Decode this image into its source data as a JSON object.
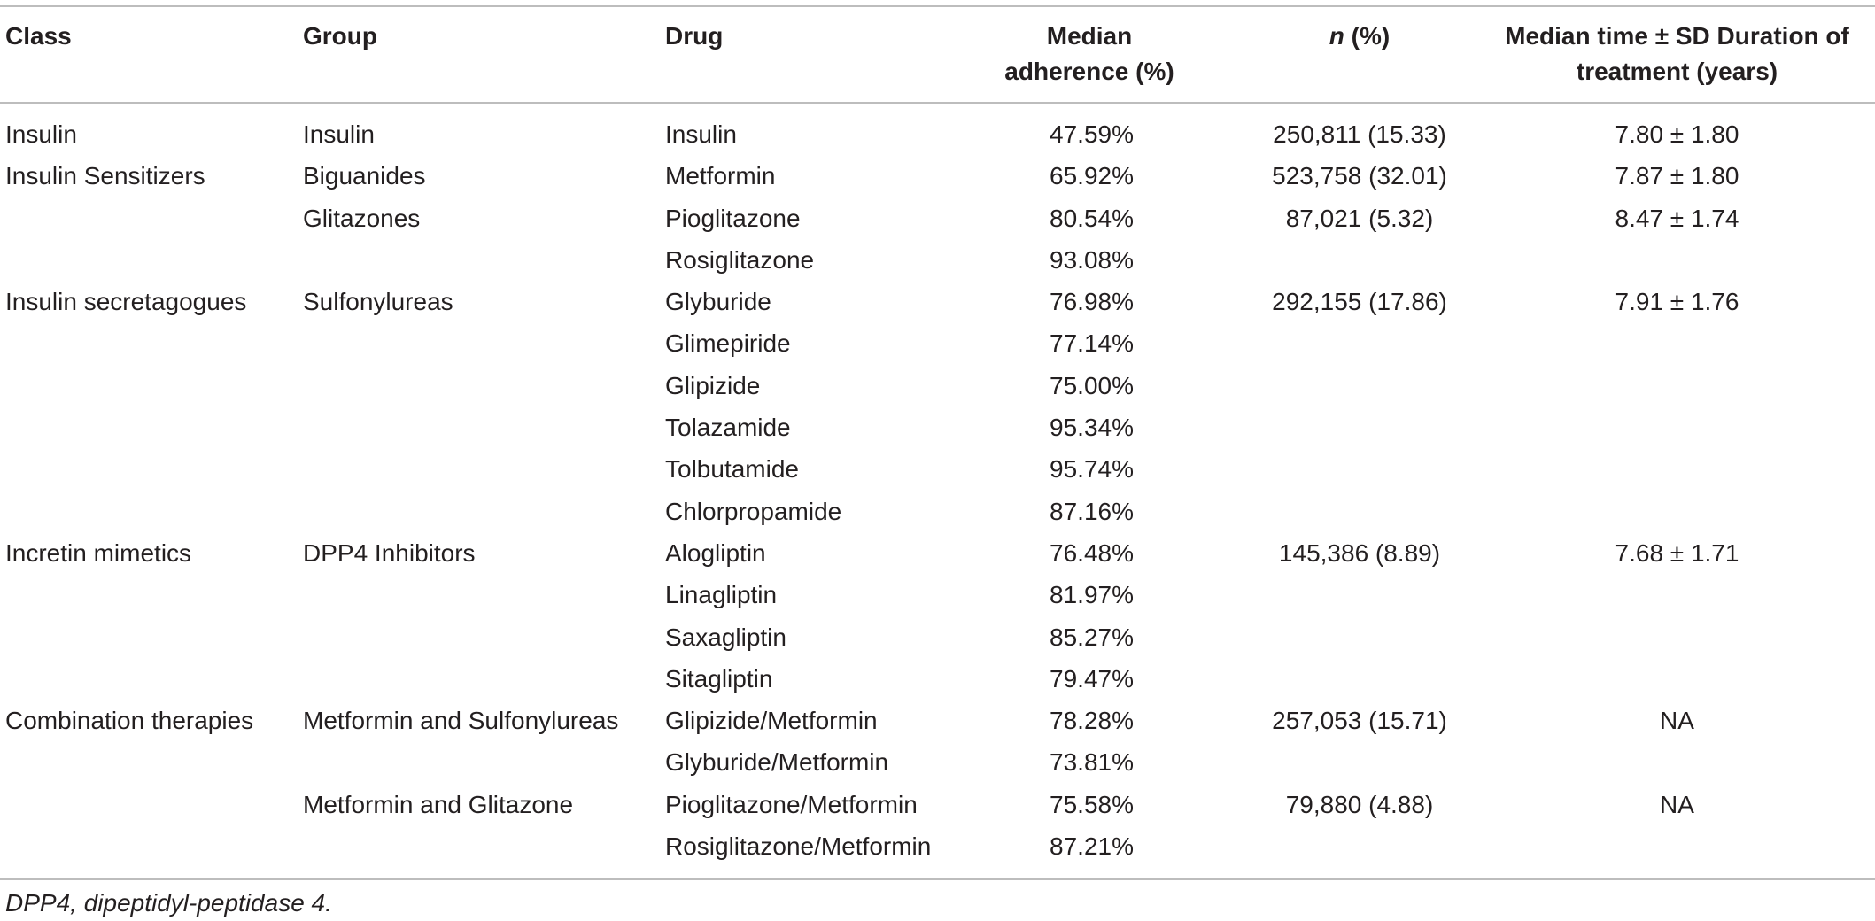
{
  "headers": {
    "class": "Class",
    "group": "Group",
    "drug": "Drug",
    "adherence_line1": "Median",
    "adherence_line2": "adherence (%)",
    "n_italic": "n",
    "n_rest": " (%)",
    "time_line1": "Median time ± SD Duration of",
    "time_line2": "treatment (years)"
  },
  "rows": [
    {
      "class": "Insulin",
      "group": "Insulin",
      "drug": "Insulin",
      "adherence": "47.59%",
      "n": "250,811 (15.33)",
      "time": "7.80 ± 1.80"
    },
    {
      "class": "Insulin Sensitizers",
      "group": "Biguanides",
      "drug": "Metformin",
      "adherence": "65.92%",
      "n": "523,758 (32.01)",
      "time": "7.87 ± 1.80"
    },
    {
      "class": "",
      "group": "Glitazones",
      "drug": "Pioglitazone",
      "adherence": "80.54%",
      "n": "87,021 (5.32)",
      "time": "8.47 ± 1.74"
    },
    {
      "class": "",
      "group": "",
      "drug": "Rosiglitazone",
      "adherence": "93.08%",
      "n": "",
      "time": ""
    },
    {
      "class": "Insulin secretagogues",
      "group": "Sulfonylureas",
      "drug": "Glyburide",
      "adherence": "76.98%",
      "n": "292,155 (17.86)",
      "time": "7.91 ± 1.76"
    },
    {
      "class": "",
      "group": "",
      "drug": "Glimepiride",
      "adherence": "77.14%",
      "n": "",
      "time": ""
    },
    {
      "class": "",
      "group": "",
      "drug": "Glipizide",
      "adherence": "75.00%",
      "n": "",
      "time": ""
    },
    {
      "class": "",
      "group": "",
      "drug": "Tolazamide",
      "adherence": "95.34%",
      "n": "",
      "time": ""
    },
    {
      "class": "",
      "group": "",
      "drug": "Tolbutamide",
      "adherence": "95.74%",
      "n": "",
      "time": ""
    },
    {
      "class": "",
      "group": "",
      "drug": "Chlorpropamide",
      "adherence": "87.16%",
      "n": "",
      "time": ""
    },
    {
      "class": "Incretin mimetics",
      "group": "DPP4 Inhibitors",
      "drug": "Alogliptin",
      "adherence": "76.48%",
      "n": "145,386 (8.89)",
      "time": "7.68 ± 1.71"
    },
    {
      "class": "",
      "group": "",
      "drug": "Linagliptin",
      "adherence": "81.97%",
      "n": "",
      "time": ""
    },
    {
      "class": "",
      "group": "",
      "drug": "Saxagliptin",
      "adherence": "85.27%",
      "n": "",
      "time": ""
    },
    {
      "class": "",
      "group": "",
      "drug": "Sitagliptin",
      "adherence": "79.47%",
      "n": "",
      "time": ""
    },
    {
      "class": "Combination therapies",
      "group": "Metformin and Sulfonylureas",
      "drug": "Glipizide/Metformin",
      "adherence": "78.28%",
      "n": "257,053 (15.71)",
      "time": "NA"
    },
    {
      "class": "",
      "group": "",
      "drug": "Glyburide/Metformin",
      "adherence": "73.81%",
      "n": "",
      "time": ""
    },
    {
      "class": "",
      "group": "Metformin and Glitazone",
      "drug": "Pioglitazone/Metformin",
      "adherence": "75.58%",
      "n": "79,880 (4.88)",
      "time": "NA"
    },
    {
      "class": "",
      "group": "",
      "drug": "Rosiglitazone/Metformin",
      "adherence": "87.21%",
      "n": "",
      "time": ""
    }
  ],
  "footnote": "DPP4, dipeptidyl-peptidase 4."
}
